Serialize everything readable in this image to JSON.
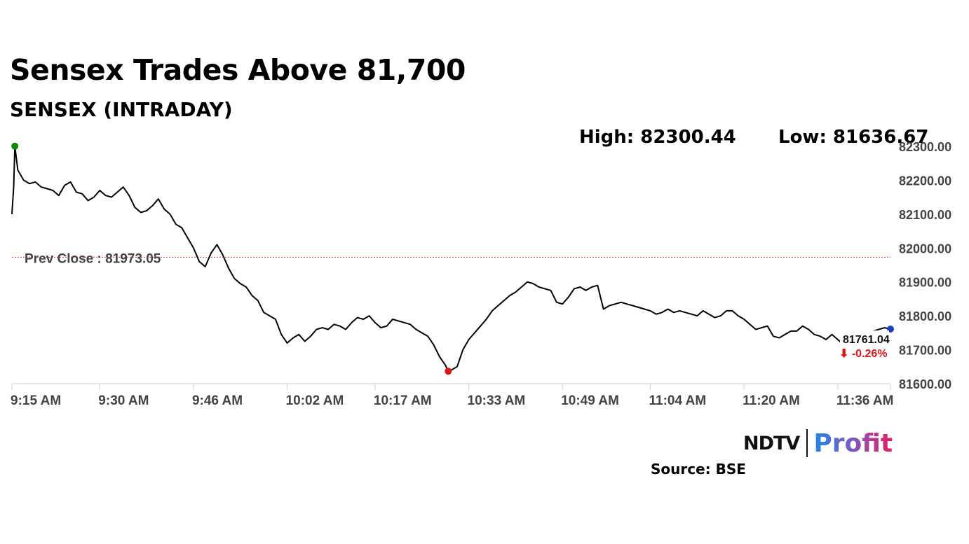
{
  "header": {
    "title": "Sensex Trades Above 81,700",
    "subtitle": "SENSEX (INTRADAY)",
    "high_label": "High: 82300.44",
    "low_label": "Low: 81636.67"
  },
  "chart_data": {
    "type": "line",
    "title": "SENSEX (INTRADAY)",
    "xlabel": "",
    "ylabel": "",
    "ylim": [
      81600,
      82300
    ],
    "yticks": [
      82300,
      82200,
      82100,
      82000,
      81900,
      81800,
      81700,
      81600
    ],
    "ytick_labels": [
      "82300.00",
      "82200.00",
      "82100.00",
      "82000.00",
      "81900.00",
      "81800.00",
      "81700.00",
      "81600.00"
    ],
    "xlim_minutes": [
      0,
      150
    ],
    "xticks": [
      {
        "label": "9:15 AM",
        "minute": 0
      },
      {
        "label": "9:30 AM",
        "minute": 15
      },
      {
        "label": "9:46 AM",
        "minute": 31
      },
      {
        "label": "10:02 AM",
        "minute": 47
      },
      {
        "label": "10:17 AM",
        "minute": 62
      },
      {
        "label": "10:33 AM",
        "minute": 78
      },
      {
        "label": "10:49 AM",
        "minute": 94
      },
      {
        "label": "11:04 AM",
        "minute": 109
      },
      {
        "label": "11:20 AM",
        "minute": 125
      },
      {
        "label": "11:36 AM",
        "minute": 141
      }
    ],
    "prev_close": {
      "label": "Prev Close : 81973.05",
      "value": 81973.05,
      "color": "#e53935"
    },
    "series": [
      {
        "name": "SENSEX",
        "color": "#000000",
        "points": [
          [
            0,
            82100
          ],
          [
            0.3,
            82180
          ],
          [
            0.5,
            82300.44
          ],
          [
            1,
            82230
          ],
          [
            2,
            82200
          ],
          [
            3,
            82190
          ],
          [
            4,
            82195
          ],
          [
            5,
            82180
          ],
          [
            6,
            82175
          ],
          [
            7,
            82170
          ],
          [
            8,
            82155
          ],
          [
            9,
            82185
          ],
          [
            10,
            82195
          ],
          [
            11,
            82165
          ],
          [
            12,
            82160
          ],
          [
            13,
            82140
          ],
          [
            14,
            82150
          ],
          [
            15,
            82170
          ],
          [
            16,
            82155
          ],
          [
            17,
            82150
          ],
          [
            18,
            82165
          ],
          [
            19,
            82180
          ],
          [
            20,
            82155
          ],
          [
            21,
            82120
          ],
          [
            22,
            82105
          ],
          [
            23,
            82110
          ],
          [
            24,
            82125
          ],
          [
            25,
            82145
          ],
          [
            26,
            82115
          ],
          [
            27,
            82100
          ],
          [
            28,
            82070
          ],
          [
            29,
            82060
          ],
          [
            30,
            82030
          ],
          [
            31,
            82000
          ],
          [
            32,
            81960
          ],
          [
            33,
            81945
          ],
          [
            34,
            81985
          ],
          [
            35,
            82010
          ],
          [
            36,
            81980
          ],
          [
            37,
            81940
          ],
          [
            38,
            81910
          ],
          [
            39,
            81895
          ],
          [
            40,
            81885
          ],
          [
            41,
            81860
          ],
          [
            42,
            81845
          ],
          [
            43,
            81810
          ],
          [
            44,
            81800
          ],
          [
            45,
            81790
          ],
          [
            46,
            81745
          ],
          [
            47,
            81720
          ],
          [
            48,
            81735
          ],
          [
            49,
            81745
          ],
          [
            50,
            81725
          ],
          [
            51,
            81740
          ],
          [
            52,
            81760
          ],
          [
            53,
            81765
          ],
          [
            54,
            81760
          ],
          [
            55,
            81775
          ],
          [
            56,
            81770
          ],
          [
            57,
            81760
          ],
          [
            58,
            81780
          ],
          [
            59,
            81795
          ],
          [
            60,
            81790
          ],
          [
            61,
            81800
          ],
          [
            62,
            81780
          ],
          [
            63,
            81765
          ],
          [
            64,
            81770
          ],
          [
            65,
            81790
          ],
          [
            66,
            81785
          ],
          [
            67,
            81780
          ],
          [
            68,
            81775
          ],
          [
            69,
            81760
          ],
          [
            70,
            81750
          ],
          [
            71,
            81740
          ],
          [
            72,
            81715
          ],
          [
            73,
            81680
          ],
          [
            74,
            81655
          ],
          [
            74.5,
            81636.67
          ],
          [
            75,
            81640
          ],
          [
            76,
            81650
          ],
          [
            77,
            81700
          ],
          [
            78,
            81730
          ],
          [
            79,
            81750
          ],
          [
            80,
            81770
          ],
          [
            81,
            81790
          ],
          [
            82,
            81815
          ],
          [
            83,
            81830
          ],
          [
            84,
            81845
          ],
          [
            85,
            81860
          ],
          [
            86,
            81870
          ],
          [
            87,
            81885
          ],
          [
            88,
            81900
          ],
          [
            89,
            81895
          ],
          [
            90,
            81885
          ],
          [
            91,
            81880
          ],
          [
            92,
            81875
          ],
          [
            93,
            81840
          ],
          [
            94,
            81835
          ],
          [
            95,
            81855
          ],
          [
            96,
            81880
          ],
          [
            97,
            81885
          ],
          [
            98,
            81875
          ],
          [
            99,
            81885
          ],
          [
            100,
            81890
          ],
          [
            101,
            81820
          ],
          [
            102,
            81830
          ],
          [
            103,
            81835
          ],
          [
            104,
            81840
          ],
          [
            105,
            81835
          ],
          [
            106,
            81830
          ],
          [
            107,
            81825
          ],
          [
            108,
            81820
          ],
          [
            109,
            81815
          ],
          [
            110,
            81805
          ],
          [
            111,
            81810
          ],
          [
            112,
            81820
          ],
          [
            113,
            81810
          ],
          [
            114,
            81815
          ],
          [
            115,
            81810
          ],
          [
            116,
            81805
          ],
          [
            117,
            81800
          ],
          [
            118,
            81815
          ],
          [
            119,
            81805
          ],
          [
            120,
            81795
          ],
          [
            121,
            81800
          ],
          [
            122,
            81815
          ],
          [
            123,
            81815
          ],
          [
            124,
            81800
          ],
          [
            125,
            81790
          ],
          [
            126,
            81775
          ],
          [
            127,
            81760
          ],
          [
            128,
            81765
          ],
          [
            129,
            81770
          ],
          [
            130,
            81740
          ],
          [
            131,
            81735
          ],
          [
            132,
            81745
          ],
          [
            133,
            81755
          ],
          [
            134,
            81755
          ],
          [
            135,
            81770
          ],
          [
            136,
            81760
          ],
          [
            137,
            81745
          ],
          [
            138,
            81740
          ],
          [
            139,
            81730
          ],
          [
            140,
            81745
          ],
          [
            141,
            81730
          ],
          [
            142,
            81715
          ],
          [
            143,
            81720
          ],
          [
            144,
            81740
          ],
          [
            145,
            81750
          ],
          [
            146,
            81745
          ],
          [
            147,
            81755
          ],
          [
            148,
            81760
          ],
          [
            149,
            81765
          ],
          [
            150,
            81761.04
          ]
        ]
      }
    ],
    "markers": [
      {
        "name": "day-high",
        "minute": 0.5,
        "value": 82300.44,
        "color": "#0a8a0a"
      },
      {
        "name": "day-low",
        "minute": 74.5,
        "value": 81636.67,
        "color": "#e01515"
      },
      {
        "name": "last-price",
        "minute": 150,
        "value": 81761.04,
        "color": "#1f3fbf"
      }
    ],
    "last_value_label": "81761.04",
    "change_label": "⬇ -0.26%",
    "change_color": "#e01515"
  },
  "footer": {
    "logo_ndtv": "NDTV",
    "logo_profit": "Profit",
    "source": "Source: BSE"
  }
}
